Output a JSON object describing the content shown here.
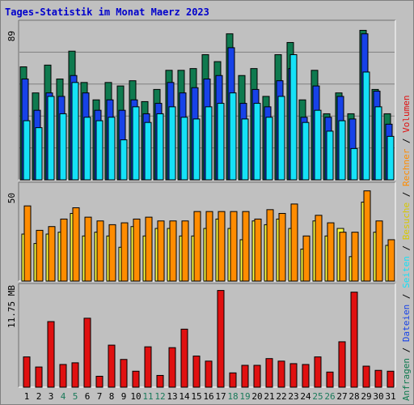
{
  "title": "Tages-Statistik im Monat Maerz 2023",
  "colors": {
    "background": "#c0c0c0",
    "title": "#0000cc",
    "anfragen": "#0f7a4f",
    "dateien": "#1742e8",
    "seiten": "#15e1f7",
    "besuche": "#ffff40",
    "rechner": "#ff8c00",
    "volumen": "#e01010",
    "weekend_label": "#1a7a5a"
  },
  "right_legend": {
    "top": [
      {
        "text": "Anfragen",
        "color": "#0f7a4f"
      },
      {
        "text": " / ",
        "color": "#000000"
      },
      {
        "text": "Dateien",
        "color": "#1742e8"
      },
      {
        "text": " / ",
        "color": "#000000"
      },
      {
        "text": "Seiten",
        "color": "#15e1f7"
      },
      {
        "text": " / ",
        "color": "#000000"
      },
      {
        "text": "Besuche",
        "color": "#d8c800"
      },
      {
        "text": " / ",
        "color": "#000000"
      },
      {
        "text": "Rechner",
        "color": "#ff8c00"
      },
      {
        "text": " / ",
        "color": "#000000"
      },
      {
        "text": "Volumen",
        "color": "#e01010"
      }
    ]
  },
  "chart_data": [
    {
      "type": "bar",
      "categories": [
        "1",
        "2",
        "3",
        "4",
        "5",
        "6",
        "7",
        "8",
        "9",
        "10",
        "11",
        "12",
        "13",
        "14",
        "15",
        "16",
        "17",
        "18",
        "19",
        "20",
        "21",
        "22",
        "23",
        "24",
        "25",
        "26",
        "27",
        "28",
        "29",
        "30",
        "31"
      ],
      "weekend_days": [
        "4",
        "5",
        "11",
        "12",
        "18",
        "19",
        "25",
        "26"
      ],
      "ymax_label": "89",
      "ylim": [
        0,
        89
      ],
      "series": [
        {
          "name": "Anfragen",
          "color": "#0f7a4f",
          "values": [
            65,
            50,
            66,
            58,
            74,
            56,
            46,
            56,
            54,
            57,
            45,
            52,
            63,
            63,
            64,
            72,
            68,
            84,
            60,
            64,
            48,
            72,
            79,
            46,
            63,
            38,
            50,
            38,
            86,
            52,
            38
          ]
        },
        {
          "name": "Dateien",
          "color": "#1742e8",
          "values": [
            58,
            40,
            50,
            48,
            60,
            50,
            40,
            46,
            40,
            46,
            38,
            44,
            56,
            50,
            53,
            58,
            60,
            76,
            44,
            52,
            42,
            57,
            64,
            36,
            54,
            36,
            48,
            35,
            84,
            51,
            32
          ]
        },
        {
          "name": "Seiten",
          "color": "#15e1f7",
          "values": [
            34,
            30,
            48,
            38,
            56,
            36,
            34,
            36,
            23,
            42,
            33,
            38,
            42,
            36,
            35,
            42,
            44,
            50,
            35,
            44,
            36,
            48,
            72,
            33,
            40,
            28,
            34,
            18,
            62,
            42,
            25
          ]
        }
      ]
    },
    {
      "type": "bar",
      "categories": [
        "1",
        "2",
        "3",
        "4",
        "5",
        "6",
        "7",
        "8",
        "9",
        "10",
        "11",
        "12",
        "13",
        "14",
        "15",
        "16",
        "17",
        "18",
        "19",
        "20",
        "21",
        "22",
        "23",
        "24",
        "25",
        "26",
        "27",
        "28",
        "29",
        "30",
        "31"
      ],
      "ymax_label": "50",
      "ylim": [
        0,
        50
      ],
      "series": [
        {
          "name": "Besuche",
          "color": "#ffff40",
          "values": [
            25,
            20,
            25,
            26,
            36,
            24,
            26,
            24,
            18,
            29,
            24,
            28,
            28,
            24,
            24,
            28,
            33,
            28,
            22,
            32,
            30,
            33,
            28,
            17,
            32,
            24,
            28,
            13,
            42,
            26,
            19
          ]
        },
        {
          "name": "Rechner",
          "color": "#ff8c00",
          "values": [
            40,
            27,
            29,
            33,
            39,
            34,
            32,
            30,
            31,
            33,
            34,
            32,
            32,
            32,
            37,
            37,
            37,
            37,
            37,
            33,
            38,
            36,
            41,
            24,
            35,
            31,
            26,
            26,
            48,
            32,
            22
          ]
        }
      ]
    },
    {
      "type": "bar",
      "categories": [
        "1",
        "2",
        "3",
        "4",
        "5",
        "6",
        "7",
        "8",
        "9",
        "10",
        "11",
        "12",
        "13",
        "14",
        "15",
        "16",
        "17",
        "18",
        "19",
        "20",
        "21",
        "22",
        "23",
        "24",
        "25",
        "26",
        "27",
        "28",
        "29",
        "30",
        "31"
      ],
      "ymax_label": "11.75 MB",
      "ylim": [
        0,
        11.75
      ],
      "series": [
        {
          "name": "Volumen",
          "color": "#e01010",
          "values": [
            3.6,
            2.4,
            7.8,
            2.7,
            2.9,
            8.2,
            1.3,
            5.0,
            3.3,
            1.9,
            4.8,
            1.4,
            4.7,
            6.9,
            3.7,
            3.1,
            11.5,
            1.7,
            2.6,
            2.6,
            3.4,
            3.1,
            2.8,
            2.7,
            3.6,
            1.8,
            5.4,
            11.3,
            2.5,
            2.0,
            1.9
          ]
        }
      ]
    }
  ]
}
